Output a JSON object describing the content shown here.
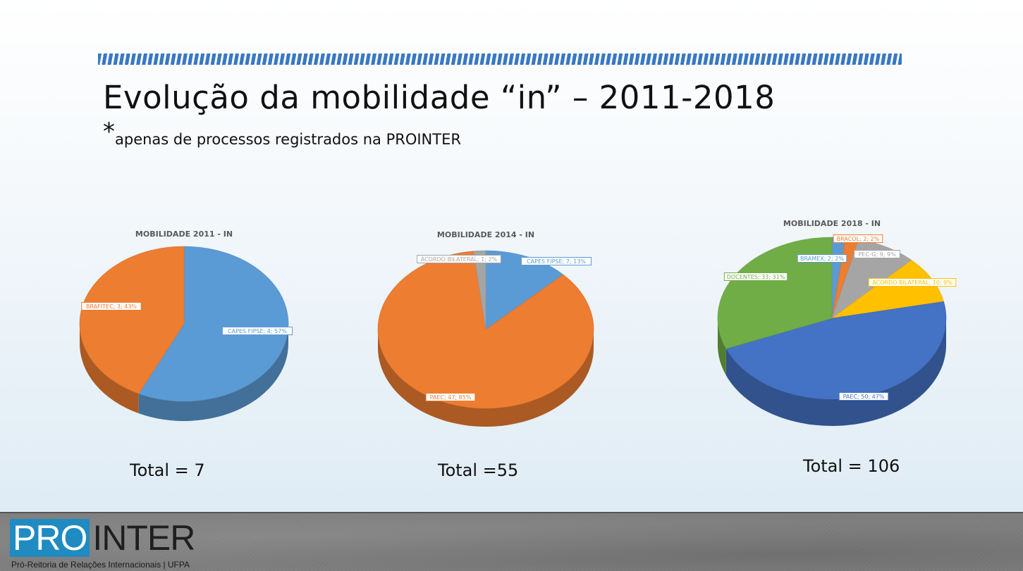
{
  "slide": {
    "title": "Evolução da mobilidade “in” – 2011-2018",
    "note_star": "*",
    "note": "apenas de processos registrados na PROINTER"
  },
  "totals": [
    "Total = 7",
    "Total =55",
    "Total = 106"
  ],
  "colors": {
    "blue_light": "#5b9bd5",
    "orange": "#ed7d31",
    "gray": "#a5a5a5",
    "yellow": "#ffc000",
    "blue_dark": "#4472c4",
    "green": "#70ad47",
    "pro_blue": "#1f8bc1"
  },
  "chart_data": [
    {
      "type": "pie",
      "title": "MOBILIDADE 2011 - IN",
      "labels": [
        "CAPES FIPSE",
        "BRAFITEC"
      ],
      "values": [
        4,
        3
      ],
      "percentages": [
        57,
        43
      ],
      "colors": [
        "#5b9bd5",
        "#ed7d31"
      ],
      "data_labels": [
        "CAPES FIPSE; 4; 57%",
        "BRAFITEC; 3; 43%"
      ]
    },
    {
      "type": "pie",
      "title": "MOBILIDADE 2014 - IN",
      "labels": [
        "CAPES FIPSE",
        "PAEC",
        "ACORDO BILATERAL"
      ],
      "values": [
        7,
        47,
        1
      ],
      "percentages": [
        13,
        85,
        2
      ],
      "colors": [
        "#5b9bd5",
        "#ed7d31",
        "#a5a5a5"
      ],
      "data_labels": [
        "CAPES FIPSE; 7; 13%",
        "PAEC; 47; 85%",
        "ACORDO BILATERAL; 1; 2%"
      ]
    },
    {
      "type": "pie",
      "title": "MOBILIDADE 2018 - IN",
      "labels": [
        "BRAMEX",
        "BRACOL",
        "PEC-G",
        "ACORDO BILATERAL",
        "PAEC",
        "DOCENTES"
      ],
      "values": [
        2,
        2,
        9,
        10,
        50,
        33
      ],
      "percentages": [
        2,
        2,
        9,
        9,
        47,
        31
      ],
      "colors": [
        "#5b9bd5",
        "#ed7d31",
        "#a5a5a5",
        "#ffc000",
        "#4472c4",
        "#70ad47"
      ],
      "data_labels": [
        "BRAMEX; 2; 2%",
        "BRACOL; 2; 2%",
        "PEC-G; 9; 9%",
        "ACORDO BILATERAL; 10; 9%",
        "PAEC; 50; 47%",
        "DOCENTES; 33; 31%"
      ]
    }
  ],
  "footer": {
    "logo_pro": "PRO",
    "logo_inter": "INTER",
    "subtitle": "Pró-Reitoria de Relações Internacionais | UFPA"
  }
}
